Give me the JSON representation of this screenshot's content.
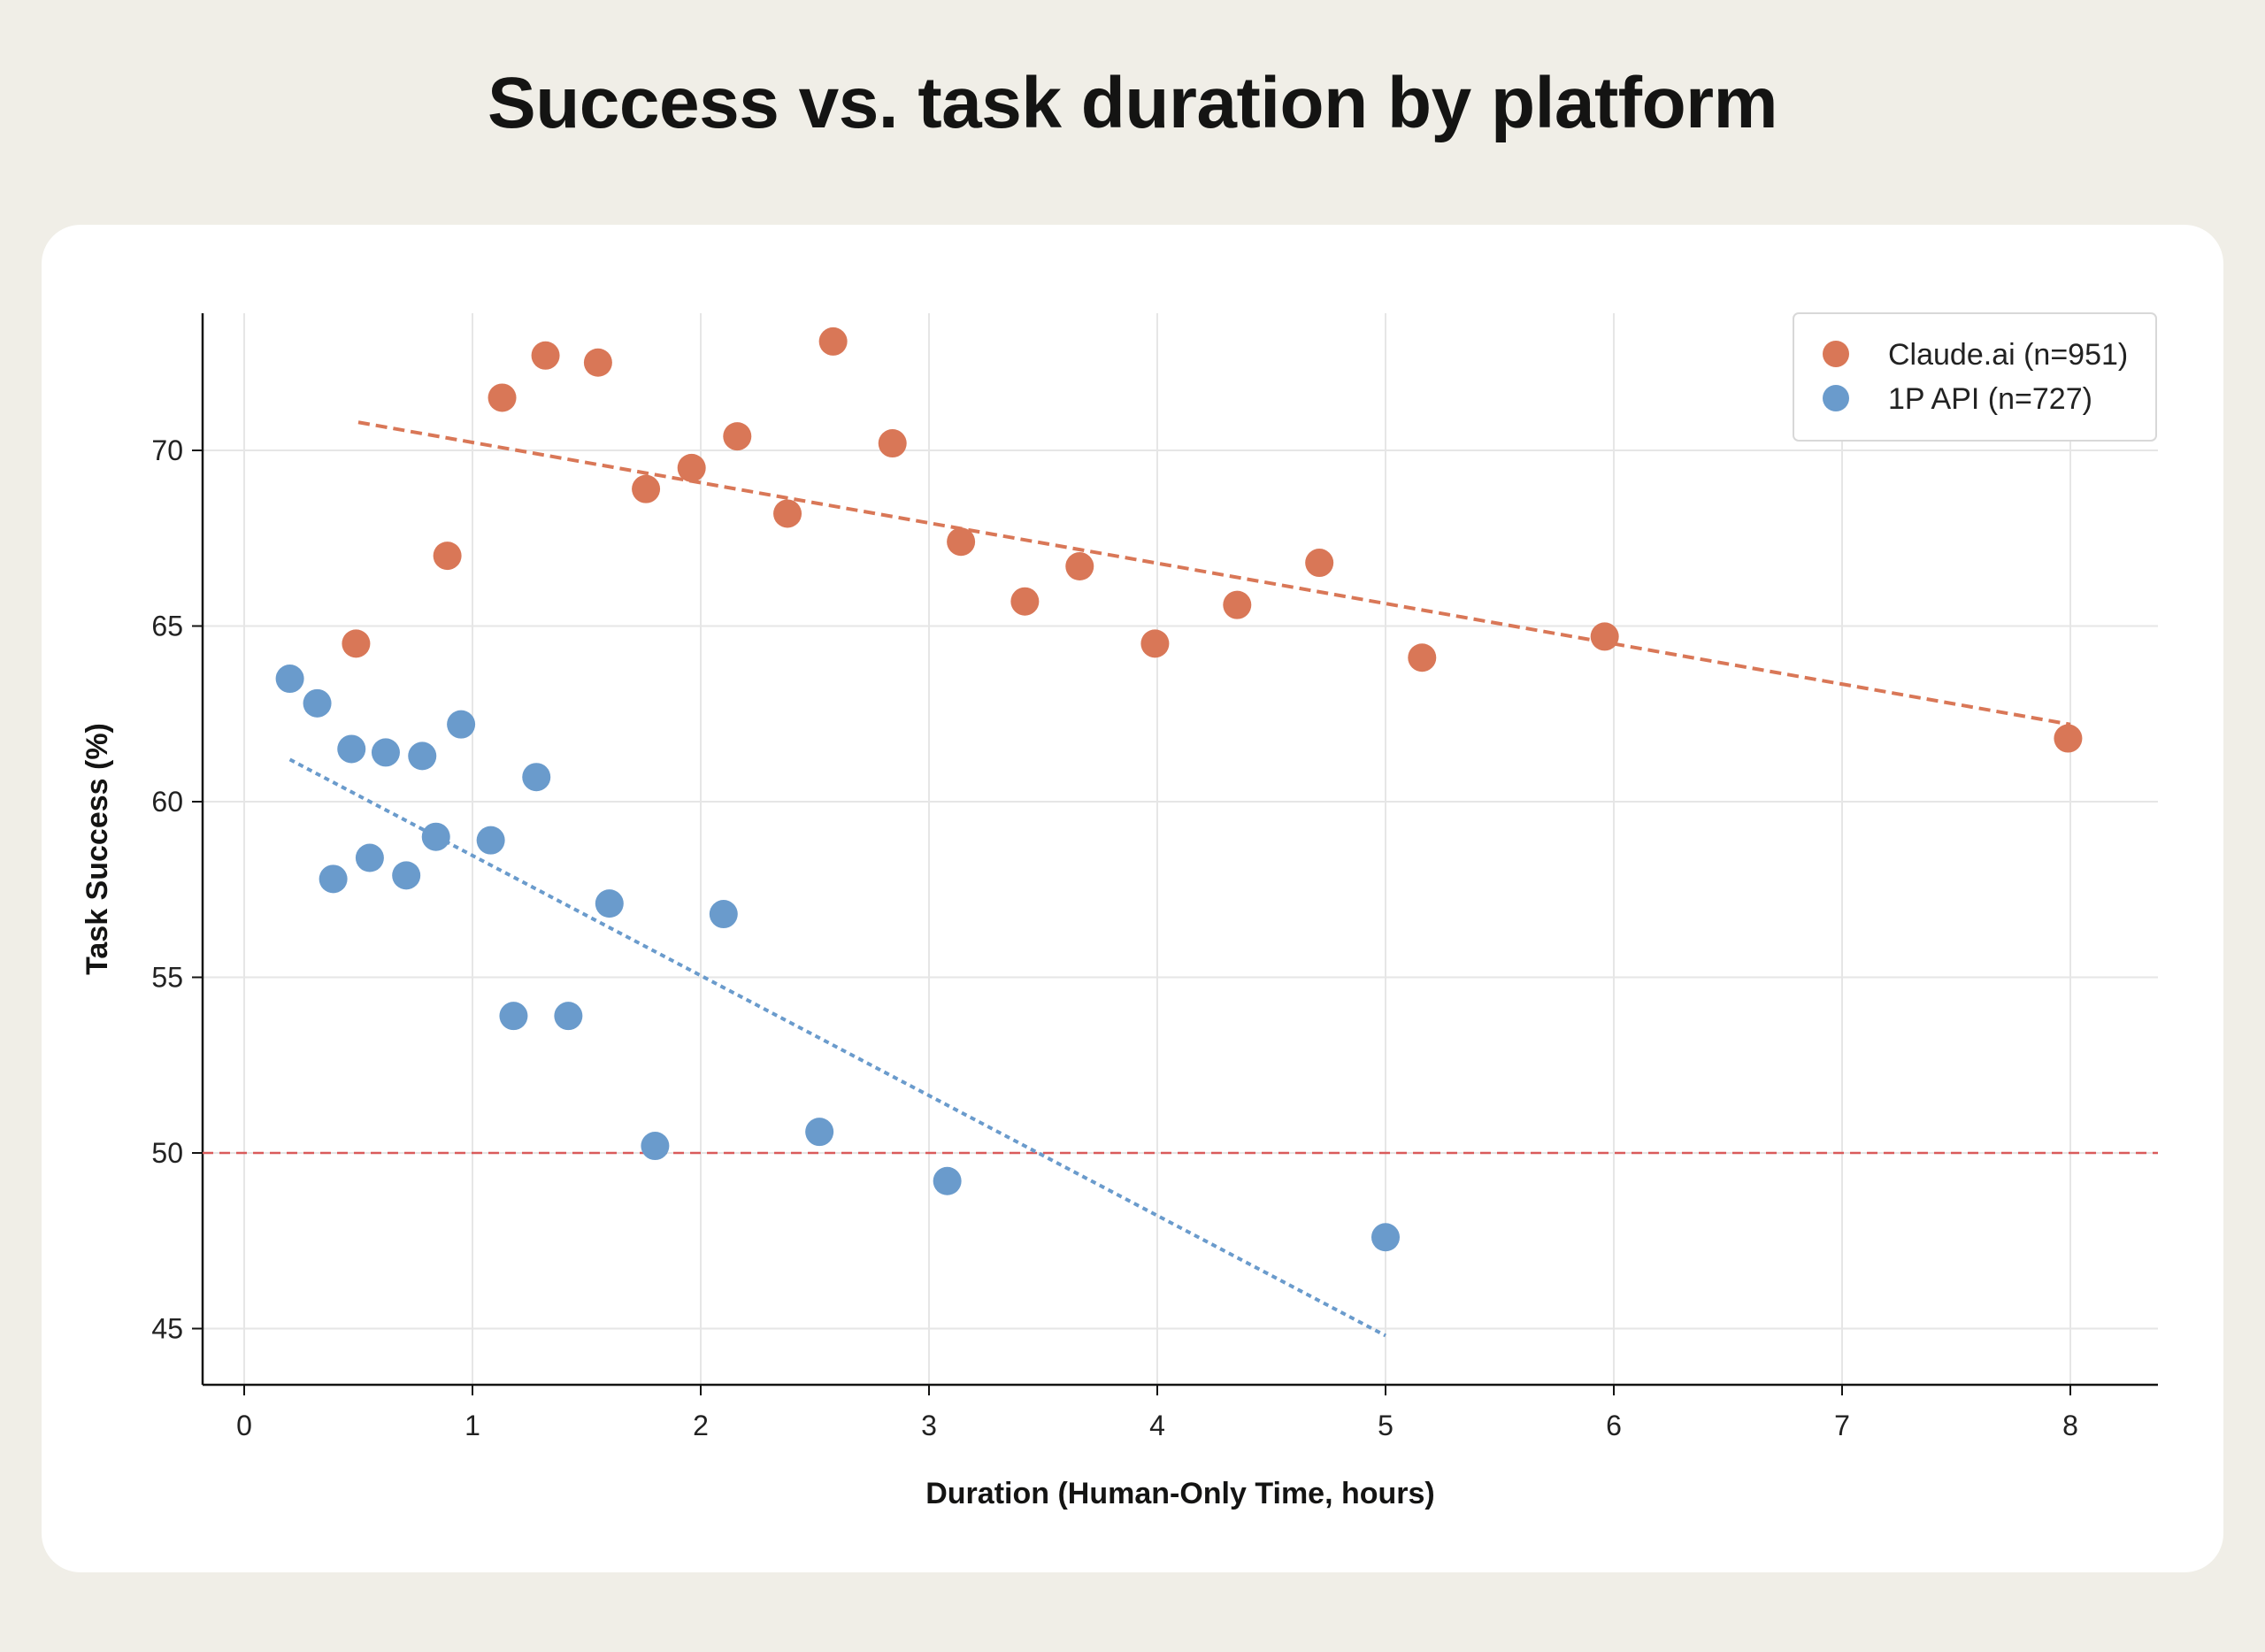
{
  "title": "Success vs. task duration by platform",
  "chart_data": {
    "type": "scatter",
    "title": "Success vs. task duration by platform",
    "xlabel": "Duration (Human-Only Time, hours)",
    "ylabel": "Task Success (%)",
    "xlim": [
      -0.18,
      8.37
    ],
    "ylim": [
      43.4,
      73.8
    ],
    "xticks": [
      0,
      1,
      2,
      3,
      4,
      5,
      6,
      7,
      8
    ],
    "yticks": [
      45,
      50,
      55,
      60,
      65,
      70
    ],
    "grid": true,
    "legend_position": "top-right",
    "reference_line": {
      "y": 50,
      "color": "#d95b5b",
      "style": "dashed"
    },
    "series": [
      {
        "name": "Claude.ai (n=951)",
        "color": "#d97757",
        "points": [
          [
            0.49,
            64.5
          ],
          [
            0.89,
            67.0
          ],
          [
            1.13,
            71.5
          ],
          [
            1.32,
            72.7
          ],
          [
            1.55,
            72.5
          ],
          [
            1.76,
            68.9
          ],
          [
            1.96,
            69.5
          ],
          [
            2.16,
            70.4
          ],
          [
            2.38,
            68.2
          ],
          [
            2.58,
            73.1
          ],
          [
            2.84,
            70.2
          ],
          [
            3.14,
            67.4
          ],
          [
            3.42,
            65.7
          ],
          [
            3.66,
            66.7
          ],
          [
            3.99,
            64.5
          ],
          [
            4.35,
            65.6
          ],
          [
            4.71,
            66.8
          ],
          [
            5.16,
            64.1
          ],
          [
            5.96,
            64.7
          ],
          [
            7.99,
            61.8
          ]
        ],
        "trend": {
          "x": [
            0.5,
            8.0
          ],
          "y": [
            70.8,
            62.2
          ]
        }
      },
      {
        "name": "1P API (n=727)",
        "color": "#6a9bcc",
        "points": [
          [
            0.2,
            63.5
          ],
          [
            0.32,
            62.8
          ],
          [
            0.39,
            57.8
          ],
          [
            0.47,
            61.5
          ],
          [
            0.55,
            58.4
          ],
          [
            0.62,
            61.4
          ],
          [
            0.71,
            57.9
          ],
          [
            0.78,
            61.3
          ],
          [
            0.84,
            59.0
          ],
          [
            0.95,
            62.2
          ],
          [
            1.08,
            58.9
          ],
          [
            1.18,
            53.9
          ],
          [
            1.28,
            60.7
          ],
          [
            1.42,
            53.9
          ],
          [
            1.6,
            57.1
          ],
          [
            1.8,
            50.2
          ],
          [
            2.1,
            56.8
          ],
          [
            2.52,
            50.6
          ],
          [
            3.08,
            49.2
          ],
          [
            5.0,
            47.6
          ]
        ],
        "trend": {
          "x": [
            0.2,
            5.0
          ],
          "y": [
            61.2,
            44.8
          ]
        }
      }
    ]
  }
}
